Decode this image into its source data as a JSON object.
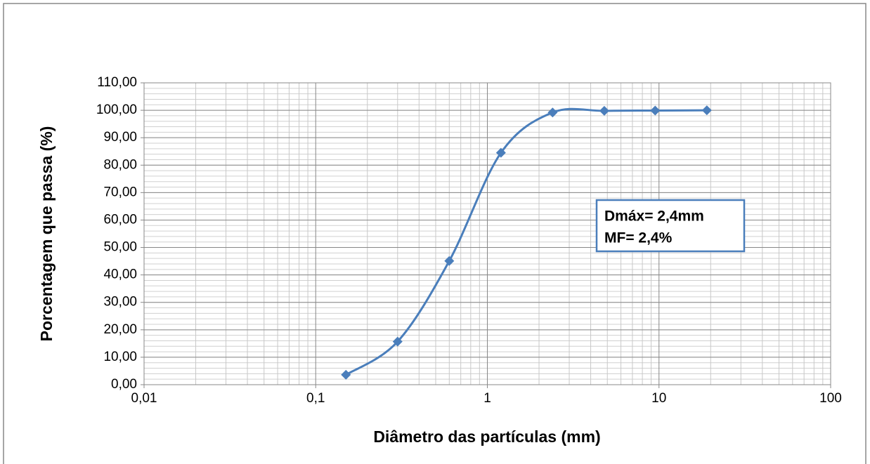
{
  "chart_data": {
    "type": "line",
    "x_label": "Diâmetro das partículas (mm)",
    "y_label": "Porcentagem que passa (%)",
    "x_log": true,
    "x": [
      0.15,
      0.3,
      0.6,
      1.2,
      2.4,
      4.8,
      9.5,
      19
    ],
    "series": [
      {
        "color": "#4a7ebb",
        "values": [
          3.6,
          15.7,
          45.1,
          84.5,
          99.2,
          99.8,
          99.9,
          100
        ]
      }
    ],
    "xlim": [
      0.01,
      100
    ],
    "xticks": [
      {
        "value": 0.01,
        "label": "0,01"
      },
      {
        "value": 0.1,
        "label": "0,1"
      },
      1,
      10,
      100
    ],
    "ylim": [
      0,
      110
    ],
    "yticks": [
      {
        "value": 0,
        "label": "0,00"
      },
      {
        "value": 10,
        "label": "10,00"
      },
      {
        "value": 20,
        "label": "20,00"
      },
      {
        "value": 30,
        "label": "30,00"
      },
      {
        "value": 40,
        "label": "40,00"
      },
      {
        "value": 50,
        "label": "50,00"
      },
      {
        "value": 60,
        "label": "60,00"
      },
      {
        "value": 70,
        "label": "70,00"
      },
      {
        "value": 80,
        "label": "80,00"
      },
      {
        "value": 90,
        "label": "90,00"
      },
      {
        "value": 100,
        "label": "100,00"
      },
      {
        "value": 110,
        "label": "110,00"
      }
    ],
    "grid": true,
    "annotations": [
      "Dmáx= 2,4mm",
      "MF= 2,4%"
    ]
  }
}
